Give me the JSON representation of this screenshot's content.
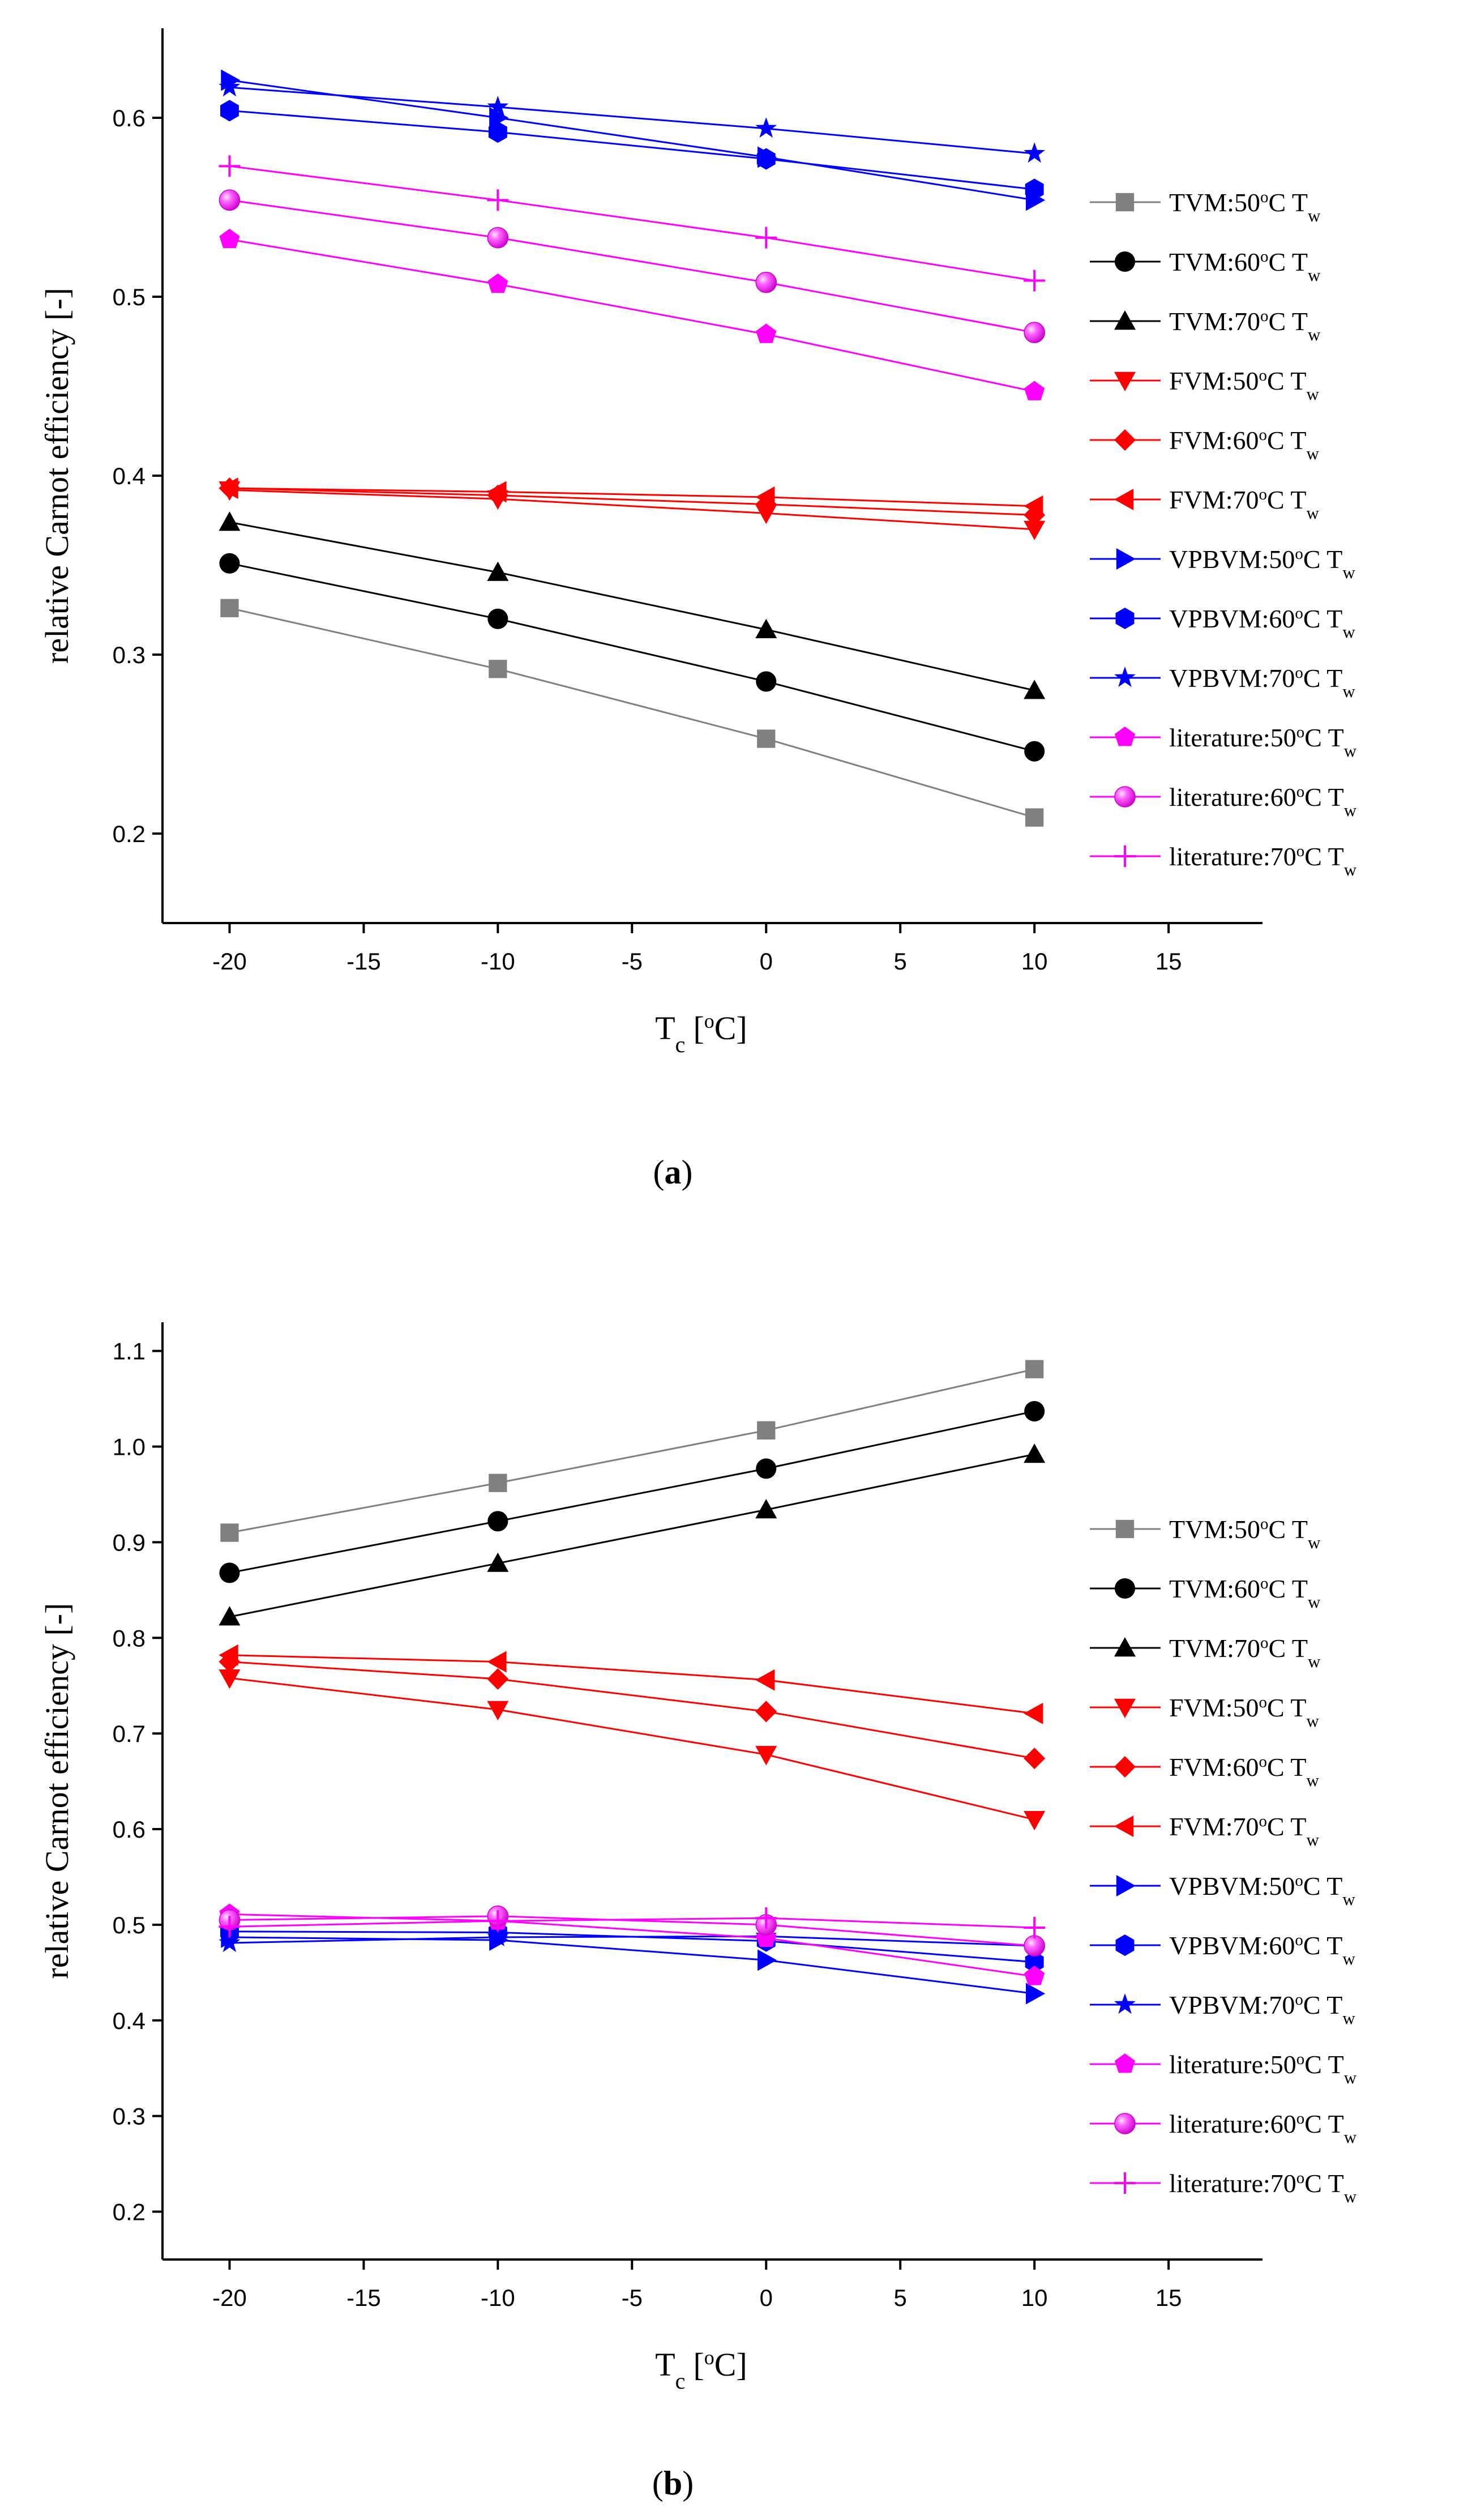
{
  "chart_data": [
    {
      "type": "line",
      "caption": "a",
      "xlabel": "T",
      "xlabel_sub": "c",
      "xlabel_unit": "[oC]",
      "ylabel": "relative Carnot efficiency [-]",
      "xlim": [
        -22.5,
        18.5
      ],
      "ylim": [
        0.15,
        0.65
      ],
      "xticks": [
        -20,
        -15,
        -10,
        -5,
        0,
        5,
        10,
        15
      ],
      "xtick_labels": [
        "-20",
        "-15",
        "-10",
        "-5",
        "0",
        "5",
        "10",
        "15"
      ],
      "yticks": [
        0.2,
        0.3,
        0.4,
        0.5,
        0.6
      ],
      "ytick_labels": [
        "0.2",
        "0.3",
        "0.4",
        "0.5",
        "0.6"
      ],
      "legend_position": "right",
      "x": [
        -20,
        -10,
        0,
        10
      ],
      "series": [
        {
          "name": "TVM:50oC T",
          "name_sub": "w",
          "color": "#808080",
          "marker": "square",
          "values": [
            0.326,
            0.292,
            0.253,
            0.209
          ]
        },
        {
          "name": "TVM:60oC T",
          "name_sub": "w",
          "color": "#000000",
          "marker": "circle",
          "values": [
            0.351,
            0.32,
            0.285,
            0.246
          ]
        },
        {
          "name": "TVM:70oC T",
          "name_sub": "w",
          "color": "#000000",
          "marker": "triangle-up",
          "values": [
            0.374,
            0.346,
            0.314,
            0.28
          ]
        },
        {
          "name": "FVM:50oC T",
          "name_sub": "w",
          "color": "#ff0000",
          "marker": "triangle-down",
          "values": [
            0.392,
            0.387,
            0.379,
            0.37
          ]
        },
        {
          "name": "FVM:60oC T",
          "name_sub": "w",
          "color": "#ff0000",
          "marker": "diamond",
          "values": [
            0.393,
            0.389,
            0.384,
            0.378
          ]
        },
        {
          "name": "FVM:70oC T",
          "name_sub": "w",
          "color": "#ff0000",
          "marker": "triangle-left",
          "values": [
            0.393,
            0.391,
            0.388,
            0.383
          ]
        },
        {
          "name": "VPBVM:50oC T",
          "name_sub": "w",
          "color": "#0000ff",
          "marker": "triangle-right",
          "values": [
            0.621,
            0.6,
            0.578,
            0.554
          ]
        },
        {
          "name": "VPBVM:60oC T",
          "name_sub": "w",
          "color": "#0000ff",
          "marker": "hexagon",
          "values": [
            0.604,
            0.592,
            0.577,
            0.56
          ]
        },
        {
          "name": "VPBVM:70oC T",
          "name_sub": "w",
          "color": "#0000ff",
          "marker": "star",
          "values": [
            0.617,
            0.606,
            0.594,
            0.58
          ]
        },
        {
          "name": "literature:50oC T",
          "name_sub": "w",
          "color": "#ff00ff",
          "marker": "pentagon",
          "values": [
            0.532,
            0.507,
            0.479,
            0.447
          ]
        },
        {
          "name": "literature:60oC T",
          "name_sub": "w",
          "color": "#ff00ff",
          "marker": "sphere",
          "values": [
            0.554,
            0.533,
            0.508,
            0.48
          ]
        },
        {
          "name": "literature:70oC T",
          "name_sub": "w",
          "color": "#ff00ff",
          "marker": "plus",
          "values": [
            0.573,
            0.554,
            0.533,
            0.509
          ]
        }
      ]
    },
    {
      "type": "line",
      "caption": "b",
      "xlabel": "T",
      "xlabel_sub": "c",
      "xlabel_unit": "[oC]",
      "ylabel": "relative Carnot efficiency [-]",
      "xlim": [
        -22.5,
        18.5
      ],
      "ylim": [
        0.15,
        1.13
      ],
      "xticks": [
        -20,
        -15,
        -10,
        -5,
        0,
        5,
        10,
        15
      ],
      "xtick_labels": [
        "-20",
        "-15",
        "-10",
        "-5",
        "0",
        "5",
        "10",
        "15"
      ],
      "yticks": [
        0.2,
        0.3,
        0.4,
        0.5,
        0.6,
        0.7,
        0.8,
        0.9,
        1.0,
        1.1
      ],
      "ytick_labels": [
        "0.2",
        "0.3",
        "0.4",
        "0.5",
        "0.6",
        "0.7",
        "0.8",
        "0.9",
        "1.0",
        "1.1"
      ],
      "legend_position": "right",
      "x": [
        -20,
        -10,
        0,
        10
      ],
      "series": [
        {
          "name": "TVM:50oC T",
          "name_sub": "w",
          "color": "#808080",
          "marker": "square",
          "values": [
            0.91,
            0.962,
            1.017,
            1.081
          ]
        },
        {
          "name": "TVM:60oC T",
          "name_sub": "w",
          "color": "#000000",
          "marker": "circle",
          "values": [
            0.868,
            0.922,
            0.977,
            1.037
          ]
        },
        {
          "name": "TVM:70oC T",
          "name_sub": "w",
          "color": "#000000",
          "marker": "triangle-up",
          "values": [
            0.822,
            0.878,
            0.934,
            0.992
          ]
        },
        {
          "name": "FVM:50oC T",
          "name_sub": "w",
          "color": "#ff0000",
          "marker": "triangle-down",
          "values": [
            0.758,
            0.725,
            0.678,
            0.61
          ]
        },
        {
          "name": "FVM:60oC T",
          "name_sub": "w",
          "color": "#ff0000",
          "marker": "diamond",
          "values": [
            0.775,
            0.757,
            0.723,
            0.674
          ]
        },
        {
          "name": "FVM:70oC T",
          "name_sub": "w",
          "color": "#ff0000",
          "marker": "triangle-left",
          "values": [
            0.782,
            0.775,
            0.756,
            0.721
          ]
        },
        {
          "name": "VPBVM:50oC T",
          "name_sub": "w",
          "color": "#0000ff",
          "marker": "triangle-right",
          "values": [
            0.487,
            0.484,
            0.463,
            0.428
          ]
        },
        {
          "name": "VPBVM:60oC T",
          "name_sub": "w",
          "color": "#0000ff",
          "marker": "hexagon",
          "values": [
            0.493,
            0.492,
            0.483,
            0.461
          ]
        },
        {
          "name": "VPBVM:70oC T",
          "name_sub": "w",
          "color": "#0000ff",
          "marker": "star",
          "values": [
            0.481,
            0.487,
            0.488,
            0.478
          ]
        },
        {
          "name": "literature:50oC T",
          "name_sub": "w",
          "color": "#ff00ff",
          "marker": "pentagon",
          "values": [
            0.511,
            0.504,
            0.486,
            0.446
          ]
        },
        {
          "name": "literature:60oC T",
          "name_sub": "w",
          "color": "#ff00ff",
          "marker": "sphere",
          "values": [
            0.505,
            0.509,
            0.5,
            0.478
          ]
        },
        {
          "name": "literature:70oC T",
          "name_sub": "w",
          "color": "#ff00ff",
          "marker": "plus",
          "values": [
            0.498,
            0.504,
            0.507,
            0.497
          ]
        }
      ]
    }
  ]
}
